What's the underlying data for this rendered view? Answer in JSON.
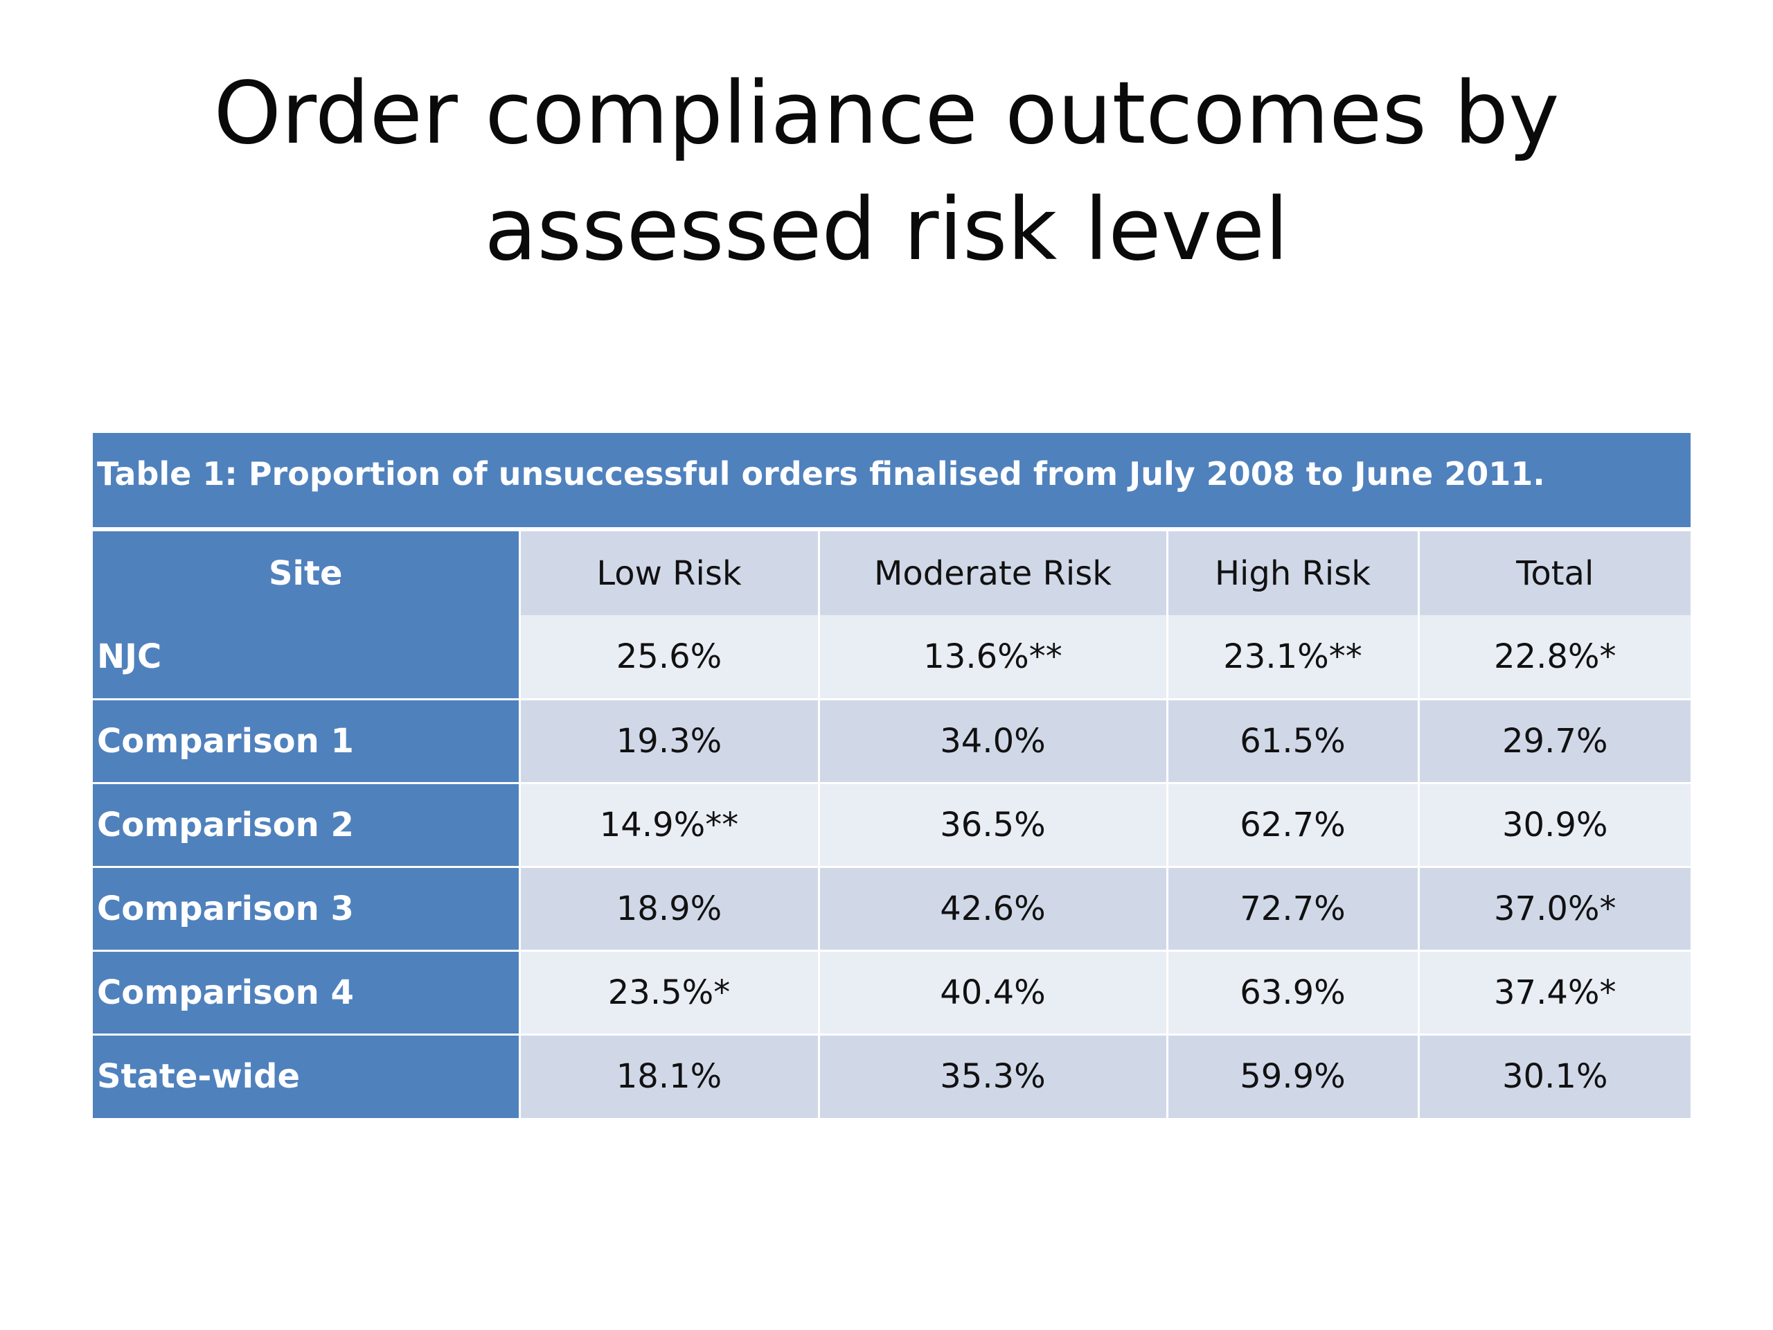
{
  "slide": {
    "title_line1": "Order compliance outcomes by",
    "title_line2": "assessed risk level"
  },
  "table": {
    "caption": "Table 1: Proportion of unsuccessful orders finalised from July 2008 to June 2011.",
    "headers": [
      "Site",
      "Low Risk",
      "Moderate Risk",
      "High Risk",
      "Total"
    ],
    "rows": [
      {
        "site": "NJC",
        "low": "25.6%",
        "moderate": "13.6%**",
        "high": "23.1%**",
        "total": "22.8%*"
      },
      {
        "site": "Comparison 1",
        "low": "19.3%",
        "moderate": "34.0%",
        "high": "61.5%",
        "total": "29.7%"
      },
      {
        "site": "Comparison 2",
        "low": "14.9%**",
        "moderate": "36.5%",
        "high": "62.7%",
        "total": "30.9%"
      },
      {
        "site": "Comparison 3",
        "low": "18.9%",
        "moderate": "42.6%",
        "high": "72.7%",
        "total": "37.0%*"
      },
      {
        "site": "Comparison 4",
        "low": "23.5%*",
        "moderate": "40.4%",
        "high": "63.9%",
        "total": "37.4%*"
      },
      {
        "site": "State-wide",
        "low": "18.1%",
        "moderate": "35.3%",
        "high": "59.9%",
        "total": "30.1%"
      }
    ]
  },
  "colors": {
    "header_blue": "#4f81bd",
    "row_dark": "#d0d8e8",
    "row_light": "#e9edf4"
  }
}
